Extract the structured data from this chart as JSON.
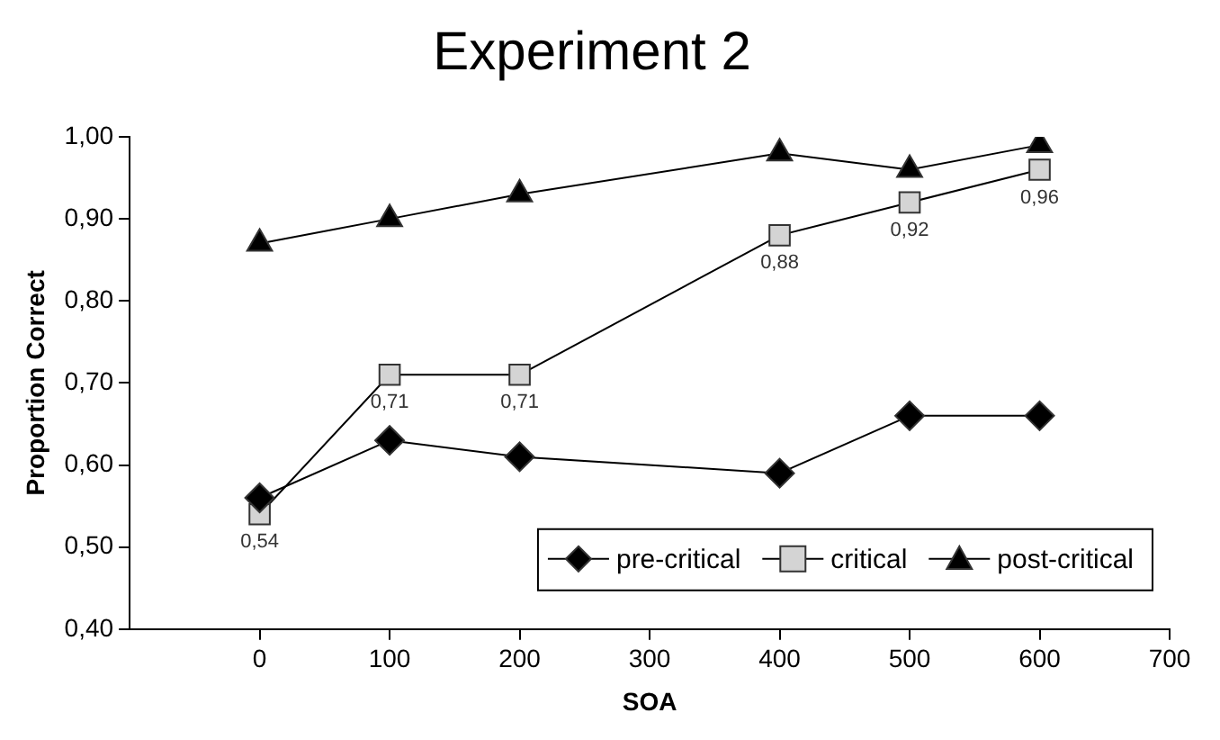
{
  "chart_data": {
    "type": "line",
    "title": "Experiment 2",
    "xlabel": "SOA",
    "ylabel": "Proportion Correct",
    "x": [
      0,
      100,
      200,
      400,
      500,
      600
    ],
    "series": [
      {
        "name": "pre-critical",
        "color": "#000000",
        "marker": "diamond",
        "values": [
          0.56,
          0.63,
          0.61,
          0.59,
          0.66,
          0.66
        ]
      },
      {
        "name": "critical",
        "color": "#d4d4d4",
        "marker": "square",
        "values": [
          0.54,
          0.71,
          0.71,
          0.88,
          0.92,
          0.96
        ],
        "value_labels": [
          "0,54",
          "0,71",
          "0,71",
          "0,88",
          "0,92",
          "0,96"
        ]
      },
      {
        "name": "post-critical",
        "color": "#000000",
        "marker": "triangle",
        "values": [
          0.87,
          0.9,
          0.93,
          0.98,
          0.96,
          0.99
        ]
      }
    ],
    "xlim": [
      -100,
      700
    ],
    "xticks": [
      0,
      100,
      200,
      300,
      400,
      500,
      600,
      700
    ],
    "ylim": [
      0.4,
      1
    ],
    "yticks": [
      {
        "value": 0.4,
        "label": "0,40"
      },
      {
        "value": 0.5,
        "label": "0,50"
      },
      {
        "value": 0.6,
        "label": "0,60"
      },
      {
        "value": 0.7,
        "label": "0,70"
      },
      {
        "value": 0.8,
        "label": "0,80"
      },
      {
        "value": 0.9,
        "label": "0,90"
      },
      {
        "value": 1,
        "label": "1,00"
      }
    ],
    "grid": false,
    "legend": "bottom right",
    "line_style": "solid"
  }
}
